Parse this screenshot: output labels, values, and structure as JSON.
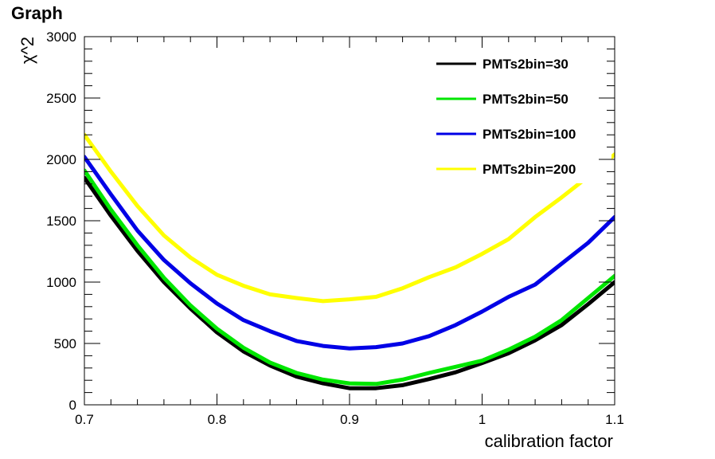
{
  "header": {
    "title": "Graph"
  },
  "chart_data": {
    "type": "line",
    "title": "Graph",
    "xlabel": "calibration factor",
    "ylabel": "χ^2",
    "xlim": [
      0.7,
      1.1
    ],
    "ylim": [
      0,
      3000
    ],
    "x_ticks": [
      0.7,
      0.8,
      0.9,
      1,
      1.1
    ],
    "x_tick_labels": [
      "0.7",
      "0.8",
      "0.9",
      "1",
      "1.1"
    ],
    "y_ticks": [
      0,
      500,
      1000,
      1500,
      2000,
      2500,
      3000
    ],
    "y_tick_labels": [
      "0",
      "500",
      "1000",
      "1500",
      "2000",
      "2500",
      "3000"
    ],
    "grid": false,
    "legend_position": "top-right",
    "series": [
      {
        "name": "PMTs2bin=30",
        "color": "#000000",
        "x": [
          0.7,
          0.72,
          0.74,
          0.76,
          0.78,
          0.8,
          0.82,
          0.84,
          0.86,
          0.88,
          0.9,
          0.92,
          0.94,
          0.96,
          0.98,
          1.0,
          1.02,
          1.04,
          1.06,
          1.08,
          1.1
        ],
        "y": [
          1850,
          1540,
          1255,
          1000,
          785,
          590,
          435,
          320,
          230,
          175,
          135,
          135,
          160,
          210,
          265,
          340,
          420,
          525,
          650,
          820,
          1000
        ]
      },
      {
        "name": "PMTs2bin=50",
        "color": "#00e600",
        "x": [
          0.7,
          0.72,
          0.74,
          0.76,
          0.78,
          0.8,
          0.82,
          0.84,
          0.86,
          0.88,
          0.9,
          0.92,
          0.94,
          0.96,
          0.98,
          1.0,
          1.02,
          1.04,
          1.06,
          1.08,
          1.1
        ],
        "y": [
          1910,
          1590,
          1300,
          1035,
          810,
          620,
          465,
          345,
          260,
          205,
          175,
          170,
          205,
          260,
          310,
          360,
          450,
          555,
          690,
          870,
          1050
        ]
      },
      {
        "name": "PMTs2bin=100",
        "color": "#0000e6",
        "x": [
          0.7,
          0.72,
          0.74,
          0.76,
          0.78,
          0.8,
          0.82,
          0.84,
          0.86,
          0.88,
          0.9,
          0.92,
          0.94,
          0.96,
          0.98,
          1.0,
          1.02,
          1.04,
          1.06,
          1.08,
          1.1
        ],
        "y": [
          2020,
          1715,
          1420,
          1180,
          990,
          825,
          690,
          600,
          520,
          480,
          460,
          470,
          500,
          560,
          650,
          760,
          880,
          980,
          1150,
          1320,
          1530
        ]
      },
      {
        "name": "PMTs2bin=200",
        "color": "#ffff00",
        "x": [
          0.7,
          0.72,
          0.74,
          0.76,
          0.78,
          0.8,
          0.82,
          0.84,
          0.86,
          0.88,
          0.9,
          0.92,
          0.94,
          0.96,
          0.98,
          1.0,
          1.02,
          1.04,
          1.06,
          1.08,
          1.1
        ],
        "y": [
          2200,
          1900,
          1620,
          1380,
          1200,
          1060,
          970,
          900,
          870,
          845,
          860,
          880,
          950,
          1040,
          1120,
          1230,
          1350,
          1530,
          1690,
          1860,
          2040
        ]
      }
    ]
  }
}
